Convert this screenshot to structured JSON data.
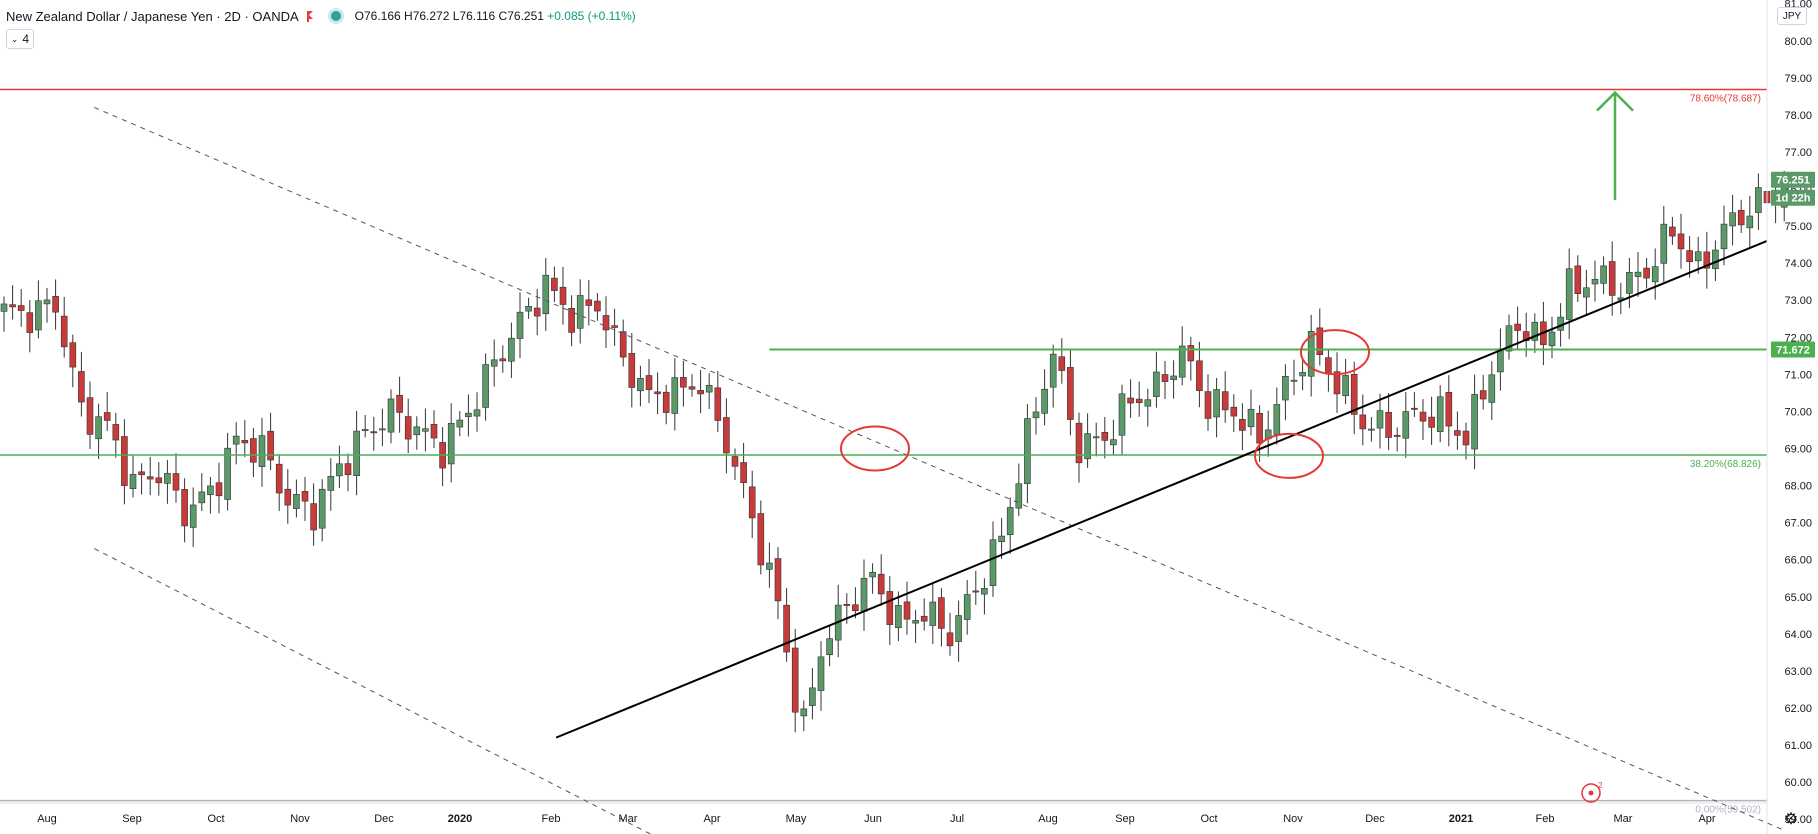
{
  "header": {
    "title": "New Zealand Dollar / Japanese Yen · 2D · OANDA",
    "ohlc": "O76.166 H76.272 L76.116 C76.251",
    "change": "+0.085 (+0.11%)",
    "interval": "4"
  },
  "currency_badge": "JPY",
  "colors": {
    "bull": "#5b9a68",
    "bear": "#c93a3a",
    "fib_high": "#e53935",
    "fib_mid": "#4caf50",
    "resistance": "#4caf50",
    "trendline": "#000000",
    "circle": "#e53935",
    "arrow": "#4caf50",
    "last_price_bg": "#5b9a68"
  },
  "chart_data": {
    "type": "candlestick",
    "symbol": "NZDJPY",
    "timeframe": "2D",
    "y_range": [
      58.6,
      81.1
    ],
    "y_ticks": [
      "59.00",
      "60.00",
      "61.00",
      "62.00",
      "63.00",
      "64.00",
      "65.00",
      "66.00",
      "67.00",
      "68.00",
      "69.00",
      "70.00",
      "71.00",
      "72.00",
      "73.00",
      "74.00",
      "75.00",
      "76.00",
      "77.00",
      "78.00",
      "79.00",
      "80.00",
      "81.00"
    ],
    "x_labels": [
      "Aug",
      "Sep",
      "Oct",
      "Nov",
      "Dec",
      "2020",
      "Feb",
      "Mar",
      "Apr",
      "May",
      "Jun",
      "Jul",
      "Aug",
      "Sep",
      "Oct",
      "Nov",
      "Dec",
      "2021",
      "Feb",
      "Mar",
      "Apr"
    ],
    "last_price": "76.251",
    "countdown": "1d 22h",
    "levels": [
      {
        "label": "78.60%(78.687)",
        "value": 78.687,
        "kind": "fib"
      },
      {
        "label": "38.20%(68.826)",
        "value": 68.826,
        "kind": "fib"
      },
      {
        "label": "0.00%(59.502)",
        "value": 59.502,
        "kind": "fib"
      },
      {
        "label": "71.672",
        "value": 71.672,
        "kind": "resistance"
      }
    ],
    "close_path": [
      [
        0,
        72.7
      ],
      [
        3,
        72.6
      ],
      [
        6,
        72.9
      ],
      [
        9,
        70.0
      ],
      [
        12,
        69.6
      ],
      [
        15,
        68.0
      ],
      [
        18,
        68.4
      ],
      [
        21,
        67.3
      ],
      [
        24,
        67.8
      ],
      [
        27,
        69.2
      ],
      [
        30,
        69.0
      ],
      [
        33,
        67.6
      ],
      [
        36,
        67.3
      ],
      [
        39,
        68.5
      ],
      [
        42,
        69.4
      ],
      [
        45,
        70.0
      ],
      [
        48,
        69.5
      ],
      [
        51,
        69.0
      ],
      [
        54,
        70.0
      ],
      [
        57,
        71.3
      ],
      [
        60,
        72.4
      ],
      [
        63,
        73.4
      ],
      [
        66,
        72.6
      ],
      [
        69,
        72.9
      ],
      [
        72,
        71.4
      ],
      [
        75,
        70.4
      ],
      [
        78,
        70.5
      ],
      [
        81,
        70.8
      ],
      [
        84,
        69.2
      ],
      [
        87,
        67.1
      ],
      [
        90,
        64.8
      ],
      [
        92,
        62.3
      ],
      [
        93,
        61.5
      ],
      [
        95,
        63.6
      ],
      [
        98,
        64.8
      ],
      [
        101,
        65.5
      ],
      [
        104,
        64.3
      ],
      [
        107,
        64.6
      ],
      [
        110,
        64.0
      ],
      [
        113,
        65.2
      ],
      [
        116,
        66.6
      ],
      [
        119,
        69.3
      ],
      [
        122,
        71.6
      ],
      [
        125,
        69.0
      ],
      [
        128,
        69.3
      ],
      [
        131,
        70.3
      ],
      [
        134,
        70.6
      ],
      [
        137,
        71.6
      ],
      [
        140,
        70.2
      ],
      [
        143,
        70.0
      ],
      [
        146,
        69.3
      ],
      [
        149,
        70.6
      ],
      [
        152,
        71.8
      ],
      [
        155,
        70.8
      ],
      [
        158,
        69.7
      ],
      [
        161,
        69.5
      ],
      [
        164,
        69.9
      ],
      [
        167,
        69.9
      ],
      [
        170,
        69.3
      ],
      [
        173,
        71.2
      ],
      [
        176,
        72.4
      ],
      [
        179,
        71.8
      ],
      [
        182,
        73.3
      ],
      [
        185,
        73.6
      ],
      [
        188,
        73.3
      ],
      [
        191,
        73.8
      ],
      [
        194,
        74.9
      ],
      [
        197,
        73.8
      ],
      [
        200,
        74.9
      ],
      [
        203,
        75.5
      ],
      [
        206,
        75.8
      ],
      [
        207,
        76.25
      ]
    ],
    "annotations": [
      "descending channel (dashed)",
      "ascending trendline",
      "three circled retests",
      "upward target arrow"
    ],
    "grid": false
  }
}
